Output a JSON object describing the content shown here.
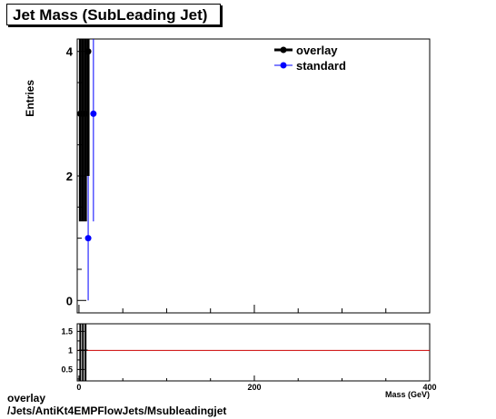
{
  "title": "Jet Mass (SubLeading Jet)",
  "footer": {
    "name": "overlay",
    "path": "/Jets/AntiKt4EMPFlowJets/Msubleadingjet"
  },
  "chart_data": [
    {
      "type": "scatter",
      "ylabel": "Entries",
      "xlim": [
        -2,
        400
      ],
      "ylim": [
        -0.2,
        4.2
      ],
      "y_ticks": [
        "0",
        "2",
        "4"
      ],
      "legend_placement": "top-right",
      "series": [
        {
          "name": "overlay",
          "color": "#000000",
          "points": [
            {
              "x": 1.5,
              "y": 3,
              "err": 1.73
            },
            {
              "x": 4.5,
              "y": 3,
              "err": 1.73
            },
            {
              "x": 7.5,
              "y": 3,
              "err": 1.73
            },
            {
              "x": 10.5,
              "y": 4,
              "err": 2.0
            }
          ]
        },
        {
          "name": "standard",
          "color": "#0000ff",
          "points": [
            {
              "x": 10.5,
              "y": 1,
              "err": 1.0
            },
            {
              "x": 16.5,
              "y": 3,
              "err": 1.73
            }
          ]
        }
      ]
    },
    {
      "type": "scatter",
      "xlabel": "Mass (GeV)",
      "xlim": [
        -2,
        400
      ],
      "ylim": [
        0.2,
        1.7
      ],
      "x_ticks": [
        "0",
        "200",
        "400"
      ],
      "y_ticks": [
        "0.5",
        "1",
        "1.5"
      ],
      "reference_line": {
        "y": 1,
        "color": "#cc0000"
      }
    }
  ]
}
